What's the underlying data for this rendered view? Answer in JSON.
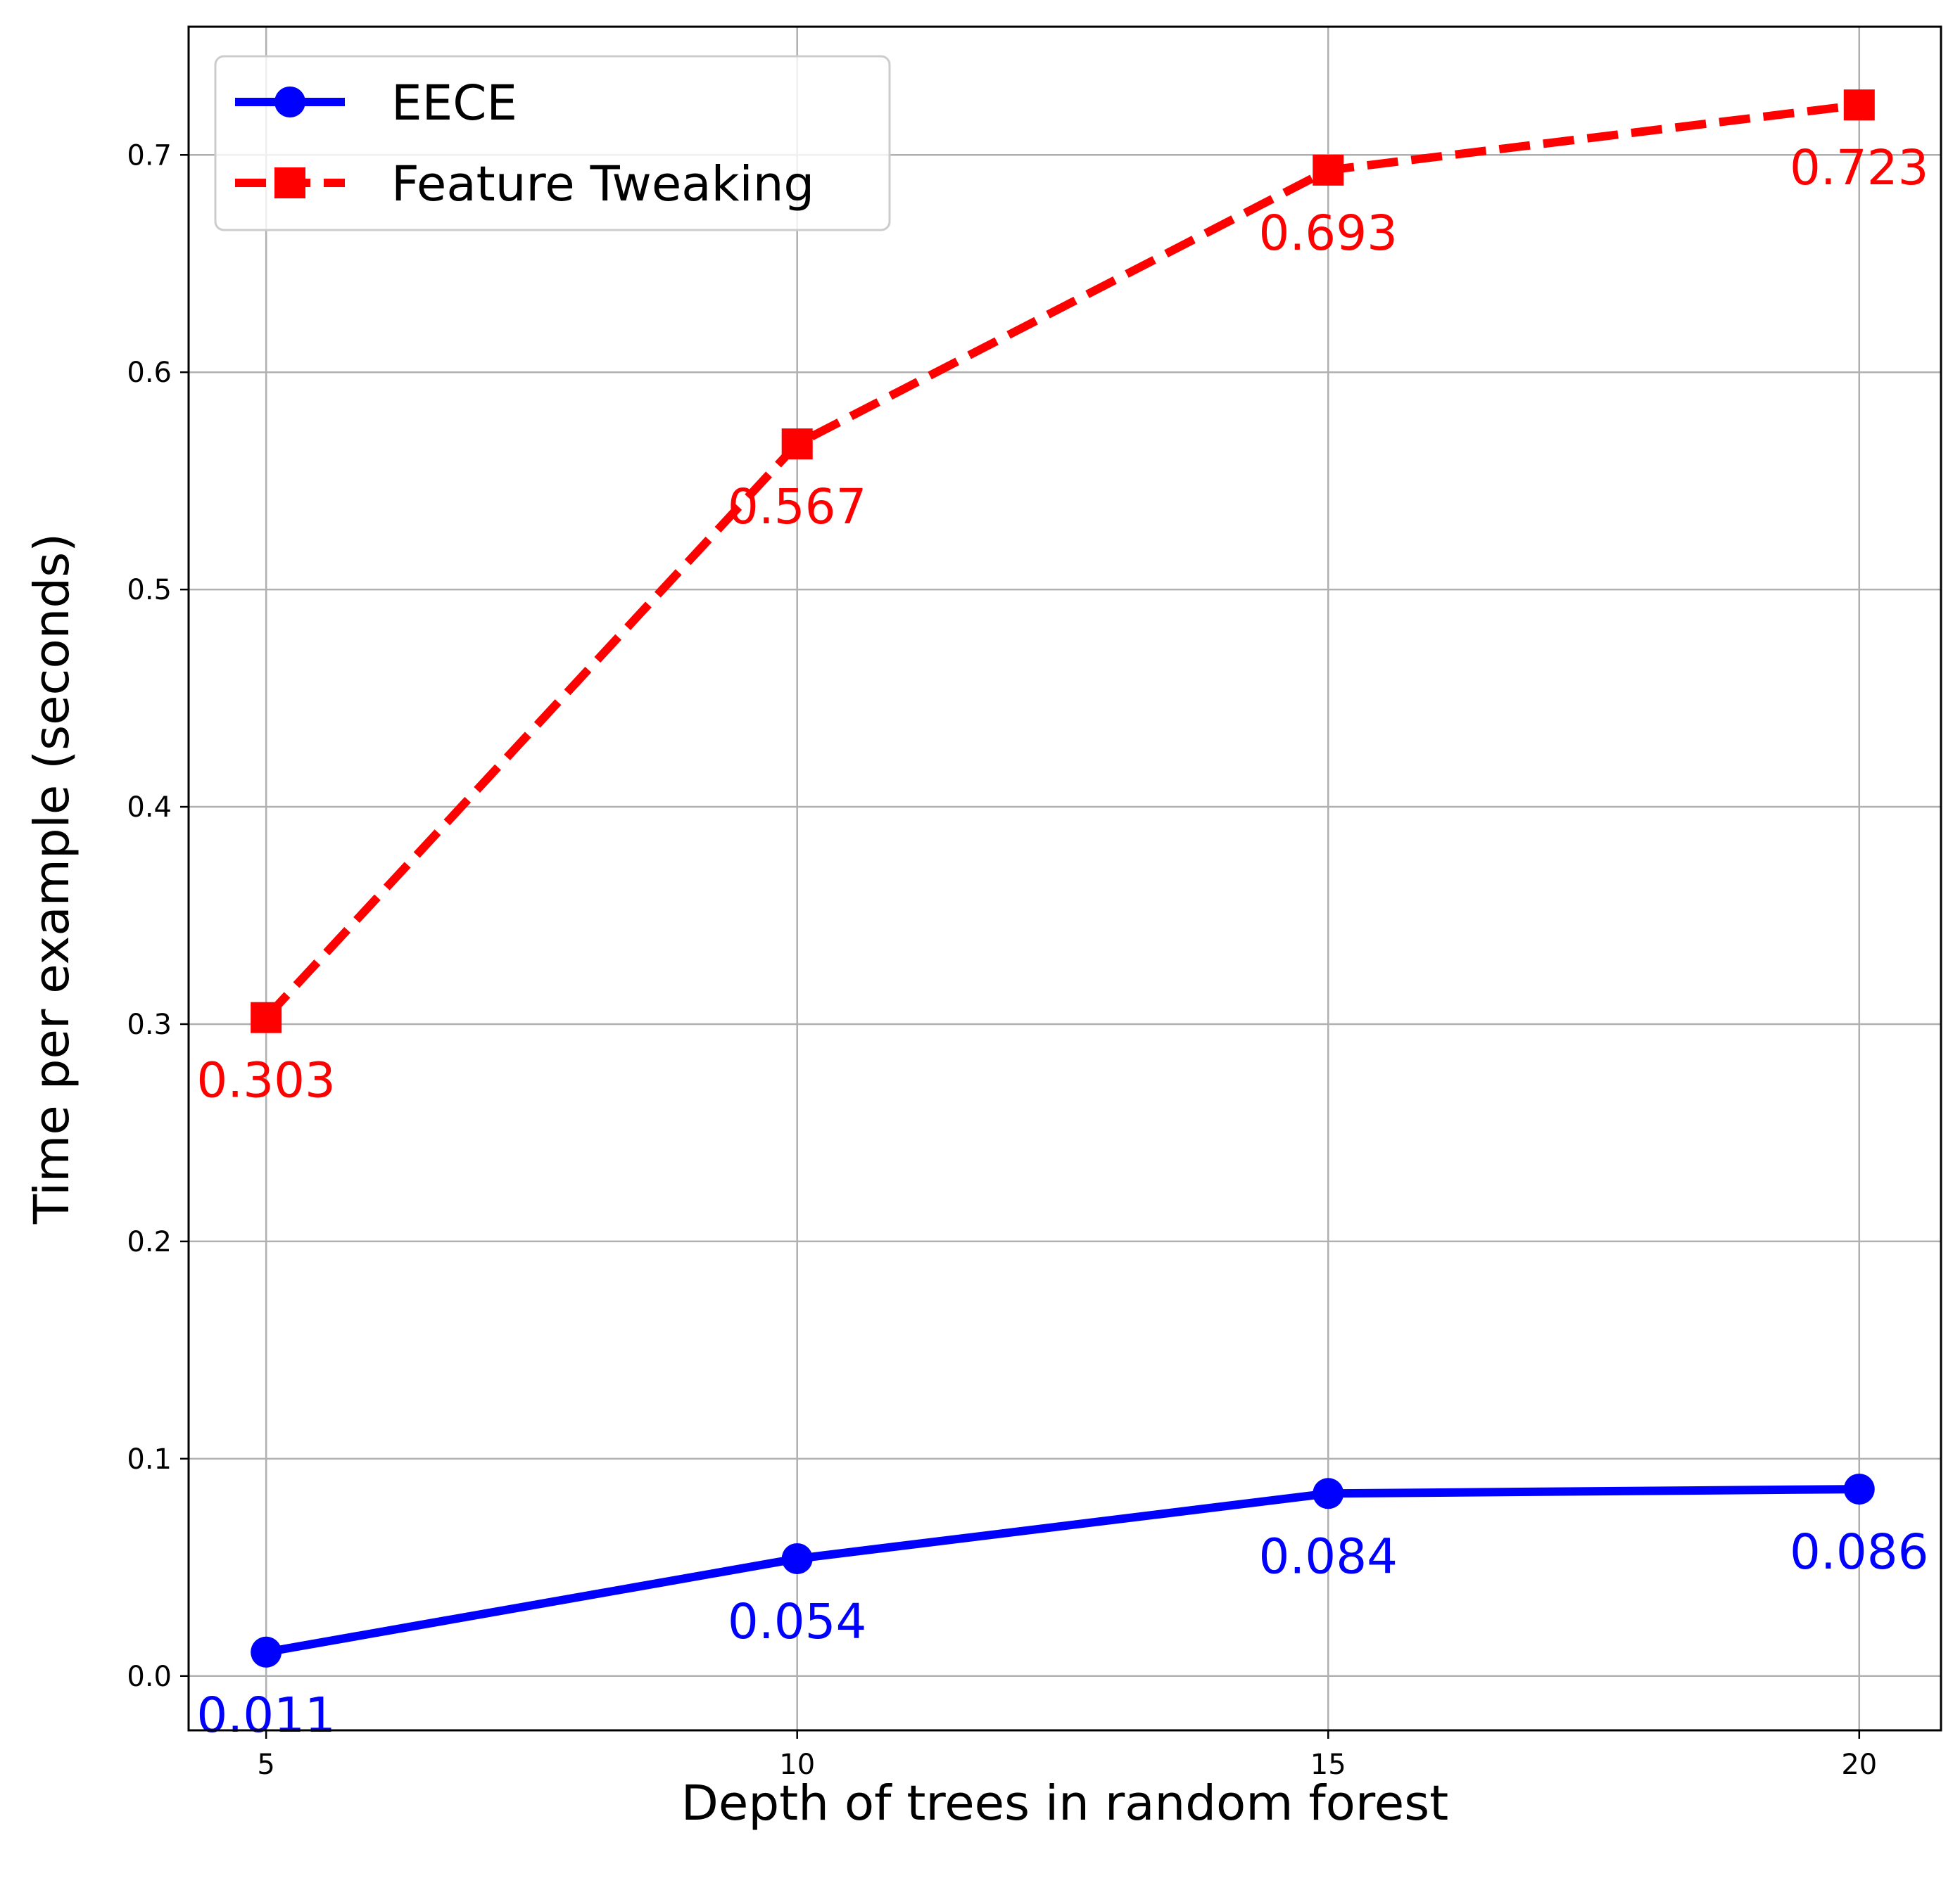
{
  "chart_data": {
    "type": "line",
    "title": "",
    "xlabel": "Depth of trees in random forest",
    "ylabel": "Time per example (seconds)",
    "x": [
      5,
      10,
      15,
      20
    ],
    "x_ticks": [
      5,
      10,
      15,
      20
    ],
    "y_ticks": [
      0.0,
      0.1,
      0.2,
      0.3,
      0.4,
      0.5,
      0.6,
      0.7
    ],
    "xlim": [
      4.27,
      20.77
    ],
    "ylim": [
      -0.025,
      0.759
    ],
    "grid": true,
    "legend_position": "top-left",
    "series": [
      {
        "name": "EECE",
        "values": [
          0.011,
          0.054,
          0.084,
          0.086
        ],
        "labels": [
          "0.011",
          "0.054",
          "0.084",
          "0.086"
        ],
        "color": "#0000ff",
        "line_style": "solid",
        "marker": "circle"
      },
      {
        "name": "Feature Tweaking",
        "values": [
          0.303,
          0.567,
          0.693,
          0.723
        ],
        "labels": [
          "0.303",
          "0.567",
          "0.693",
          "0.723"
        ],
        "color": "#ff0000",
        "line_style": "dashed",
        "marker": "square"
      }
    ]
  }
}
